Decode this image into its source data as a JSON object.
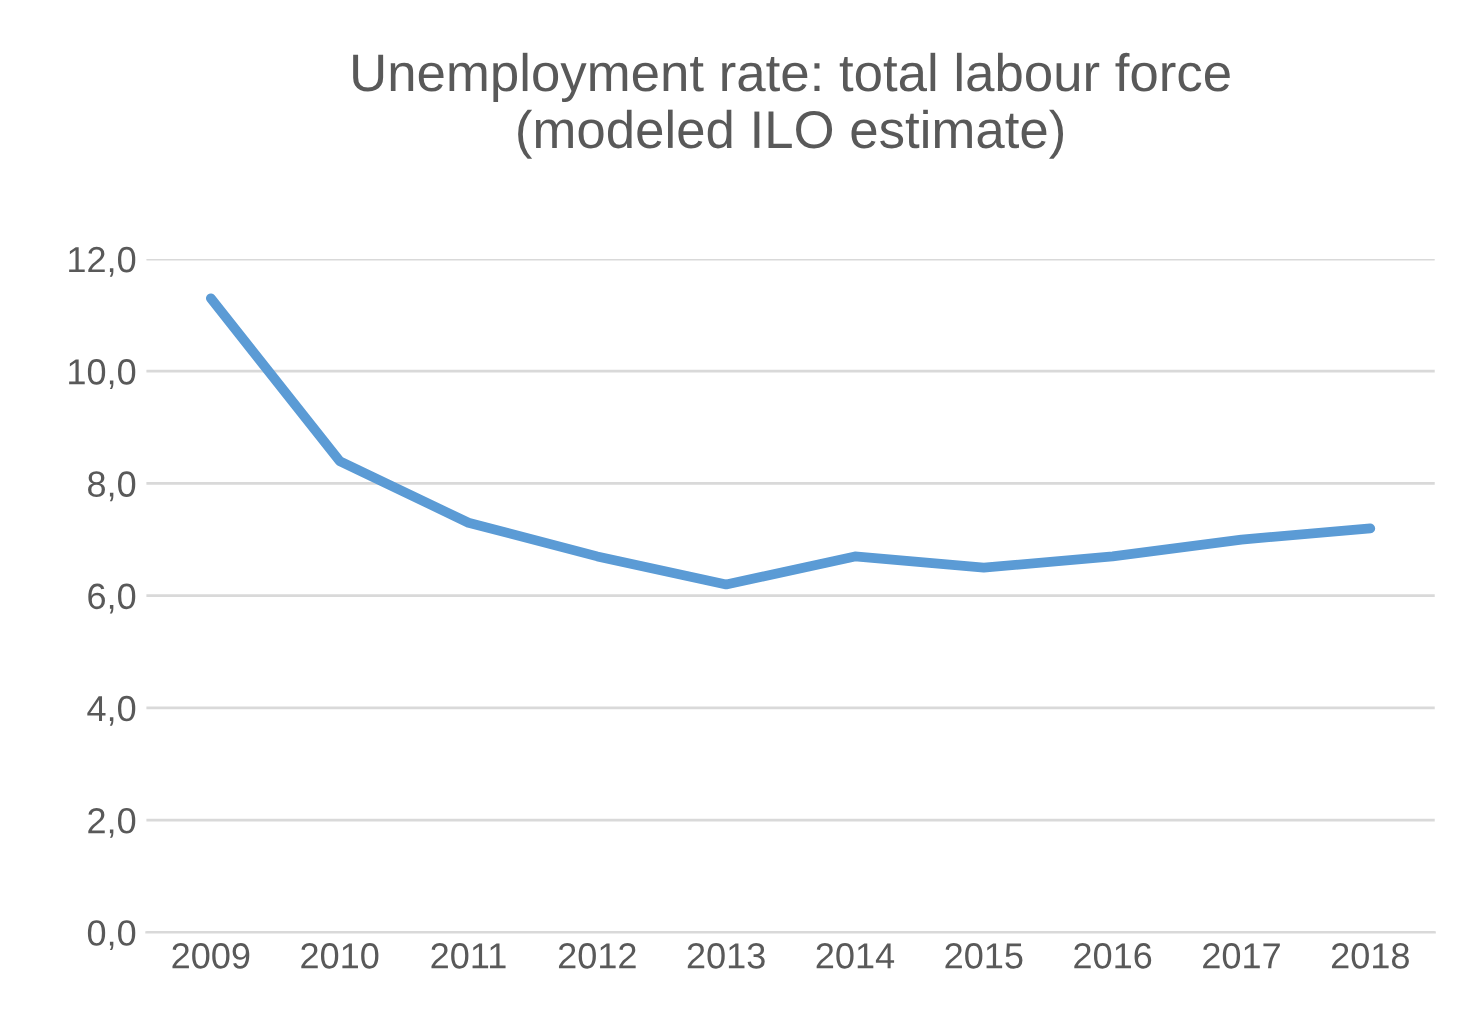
{
  "chart_data": {
    "type": "line",
    "title": "Unemployment rate: total labour force\n(modeled ILO estimate)",
    "categories": [
      "2009",
      "2010",
      "2011",
      "2012",
      "2013",
      "2014",
      "2015",
      "2016",
      "2017",
      "2018"
    ],
    "series": [
      {
        "color": "#5b9bd5",
        "values": [
          11.3,
          8.4,
          7.3,
          6.7,
          6.2,
          6.7,
          6.5,
          6.7,
          7.0,
          7.2
        ]
      }
    ],
    "ylim": [
      0,
      12
    ],
    "yticks": [
      {
        "value": 0,
        "label": "0,0"
      },
      {
        "value": 2,
        "label": "2,0"
      },
      {
        "value": 4,
        "label": "4,0"
      },
      {
        "value": 6,
        "label": "6,0"
      },
      {
        "value": 8,
        "label": "8,0"
      },
      {
        "value": 10,
        "label": "10,0"
      },
      {
        "value": 12,
        "label": "12,0"
      }
    ],
    "grid": "y",
    "marker": "none",
    "line_style": "solid"
  }
}
